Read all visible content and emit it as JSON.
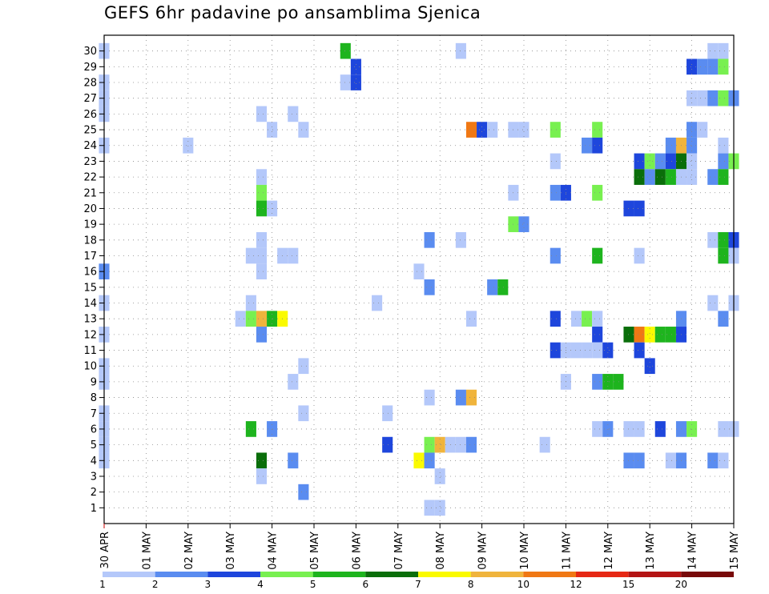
{
  "chart_data": {
    "type": "heatmap",
    "title": "GEFS 6hr padavine po ansamblima Sjenica",
    "x_tick_labels": [
      "30 APR",
      "01 MAY",
      "02 MAY",
      "03 MAY",
      "04 MAY",
      "05 MAY",
      "06 MAY",
      "07 MAY",
      "08 MAY",
      "09 MAY",
      "10 MAY",
      "11 MAY",
      "12 MAY",
      "13 MAY",
      "14 MAY",
      "15 MAY"
    ],
    "x_unit": "6-hour step (4 steps per day), first column = 30 APR 00z",
    "y_tick_labels": [
      "1",
      "2",
      "3",
      "4",
      "5",
      "6",
      "7",
      "8",
      "9",
      "10",
      "11",
      "12",
      "13",
      "14",
      "15",
      "16",
      "17",
      "18",
      "19",
      "20",
      "21",
      "22",
      "23",
      "24",
      "25",
      "26",
      "27",
      "28",
      "29",
      "30"
    ],
    "ylabel": "",
    "xlabel": "",
    "grid": true,
    "colorbar": {
      "levels": [
        "1",
        "2",
        "3",
        "4",
        "5",
        "6",
        "7",
        "8",
        "10",
        "12",
        "15",
        "20"
      ],
      "colors": [
        "#b4c8fa",
        "#5a8cf0",
        "#1e46dc",
        "#78f050",
        "#1eb41e",
        "#0a6e0a",
        "#fafa00",
        "#f0b43c",
        "#f07814",
        "#e62814",
        "#b41414",
        "#780a0a"
      ]
    },
    "cells": [
      {
        "member": 30,
        "step": 0,
        "level": 1
      },
      {
        "member": 30,
        "step": 23,
        "level": 5
      },
      {
        "member": 30,
        "step": 34,
        "level": 1
      },
      {
        "member": 30,
        "step": 58,
        "level": 1
      },
      {
        "member": 30,
        "step": 59,
        "level": 1
      },
      {
        "member": 29,
        "step": 24,
        "level": 3
      },
      {
        "member": 29,
        "step": 56,
        "level": 3
      },
      {
        "member": 29,
        "step": 57,
        "level": 2
      },
      {
        "member": 29,
        "step": 58,
        "level": 2
      },
      {
        "member": 29,
        "step": 59,
        "level": 4
      },
      {
        "member": 28,
        "step": 0,
        "level": 1
      },
      {
        "member": 28,
        "step": 23,
        "level": 1
      },
      {
        "member": 28,
        "step": 24,
        "level": 3
      },
      {
        "member": 27,
        "step": 0,
        "level": 1
      },
      {
        "member": 27,
        "step": 56,
        "level": 1
      },
      {
        "member": 27,
        "step": 57,
        "level": 1
      },
      {
        "member": 27,
        "step": 58,
        "level": 2
      },
      {
        "member": 27,
        "step": 59,
        "level": 4
      },
      {
        "member": 27,
        "step": 60,
        "level": 2
      },
      {
        "member": 26,
        "step": 0,
        "level": 1
      },
      {
        "member": 26,
        "step": 15,
        "level": 1
      },
      {
        "member": 26,
        "step": 18,
        "level": 1
      },
      {
        "member": 25,
        "step": 16,
        "level": 1
      },
      {
        "member": 25,
        "step": 19,
        "level": 1
      },
      {
        "member": 25,
        "step": 35,
        "level": 9
      },
      {
        "member": 25,
        "step": 36,
        "level": 3
      },
      {
        "member": 25,
        "step": 37,
        "level": 1
      },
      {
        "member": 25,
        "step": 39,
        "level": 1
      },
      {
        "member": 25,
        "step": 40,
        "level": 1
      },
      {
        "member": 25,
        "step": 43,
        "level": 4
      },
      {
        "member": 25,
        "step": 47,
        "level": 4
      },
      {
        "member": 25,
        "step": 56,
        "level": 2
      },
      {
        "member": 25,
        "step": 57,
        "level": 1
      },
      {
        "member": 24,
        "step": 0,
        "level": 1
      },
      {
        "member": 24,
        "step": 8,
        "level": 1
      },
      {
        "member": 24,
        "step": 46,
        "level": 2
      },
      {
        "member": 24,
        "step": 47,
        "level": 3
      },
      {
        "member": 24,
        "step": 54,
        "level": 2
      },
      {
        "member": 24,
        "step": 55,
        "level": 8
      },
      {
        "member": 24,
        "step": 56,
        "level": 2
      },
      {
        "member": 24,
        "step": 59,
        "level": 1
      },
      {
        "member": 23,
        "step": 43,
        "level": 1
      },
      {
        "member": 23,
        "step": 51,
        "level": 3
      },
      {
        "member": 23,
        "step": 52,
        "level": 4
      },
      {
        "member": 23,
        "step": 53,
        "level": 2
      },
      {
        "member": 23,
        "step": 54,
        "level": 3
      },
      {
        "member": 23,
        "step": 55,
        "level": 6
      },
      {
        "member": 23,
        "step": 56,
        "level": 1
      },
      {
        "member": 23,
        "step": 59,
        "level": 2
      },
      {
        "member": 23,
        "step": 60,
        "level": 4
      },
      {
        "member": 22,
        "step": 15,
        "level": 1
      },
      {
        "member": 22,
        "step": 51,
        "level": 6
      },
      {
        "member": 22,
        "step": 52,
        "level": 2
      },
      {
        "member": 22,
        "step": 53,
        "level": 6
      },
      {
        "member": 22,
        "step": 54,
        "level": 5
      },
      {
        "member": 22,
        "step": 55,
        "level": 1
      },
      {
        "member": 22,
        "step": 56,
        "level": 1
      },
      {
        "member": 22,
        "step": 58,
        "level": 2
      },
      {
        "member": 22,
        "step": 59,
        "level": 5
      },
      {
        "member": 21,
        "step": 15,
        "level": 4
      },
      {
        "member": 21,
        "step": 39,
        "level": 1
      },
      {
        "member": 21,
        "step": 43,
        "level": 2
      },
      {
        "member": 21,
        "step": 44,
        "level": 3
      },
      {
        "member": 21,
        "step": 47,
        "level": 4
      },
      {
        "member": 20,
        "step": 15,
        "level": 5
      },
      {
        "member": 20,
        "step": 16,
        "level": 1
      },
      {
        "member": 20,
        "step": 50,
        "level": 3
      },
      {
        "member": 20,
        "step": 51,
        "level": 3
      },
      {
        "member": 19,
        "step": 39,
        "level": 4
      },
      {
        "member": 19,
        "step": 40,
        "level": 2
      },
      {
        "member": 18,
        "step": 15,
        "level": 1
      },
      {
        "member": 18,
        "step": 31,
        "level": 2
      },
      {
        "member": 18,
        "step": 34,
        "level": 1
      },
      {
        "member": 18,
        "step": 58,
        "level": 1
      },
      {
        "member": 18,
        "step": 59,
        "level": 5
      },
      {
        "member": 18,
        "step": 60,
        "level": 3
      },
      {
        "member": 17,
        "step": 14,
        "level": 1
      },
      {
        "member": 17,
        "step": 15,
        "level": 1
      },
      {
        "member": 17,
        "step": 17,
        "level": 1
      },
      {
        "member": 17,
        "step": 18,
        "level": 1
      },
      {
        "member": 17,
        "step": 43,
        "level": 2
      },
      {
        "member": 17,
        "step": 47,
        "level": 5
      },
      {
        "member": 17,
        "step": 51,
        "level": 1
      },
      {
        "member": 17,
        "step": 59,
        "level": 5
      },
      {
        "member": 17,
        "step": 60,
        "level": 1
      },
      {
        "member": 16,
        "step": 0,
        "level": 2
      },
      {
        "member": 16,
        "step": 15,
        "level": 1
      },
      {
        "member": 16,
        "step": 30,
        "level": 1
      },
      {
        "member": 15,
        "step": 31,
        "level": 2
      },
      {
        "member": 15,
        "step": 37,
        "level": 2
      },
      {
        "member": 15,
        "step": 38,
        "level": 5
      },
      {
        "member": 14,
        "step": 0,
        "level": 1
      },
      {
        "member": 14,
        "step": 14,
        "level": 1
      },
      {
        "member": 14,
        "step": 26,
        "level": 1
      },
      {
        "member": 14,
        "step": 58,
        "level": 1
      },
      {
        "member": 14,
        "step": 60,
        "level": 1
      },
      {
        "member": 13,
        "step": 13,
        "level": 1
      },
      {
        "member": 13,
        "step": 14,
        "level": 4
      },
      {
        "member": 13,
        "step": 15,
        "level": 8
      },
      {
        "member": 13,
        "step": 16,
        "level": 5
      },
      {
        "member": 13,
        "step": 17,
        "level": 7
      },
      {
        "member": 13,
        "step": 35,
        "level": 1
      },
      {
        "member": 13,
        "step": 43,
        "level": 3
      },
      {
        "member": 13,
        "step": 45,
        "level": 1
      },
      {
        "member": 13,
        "step": 46,
        "level": 4
      },
      {
        "member": 13,
        "step": 47,
        "level": 1
      },
      {
        "member": 13,
        "step": 55,
        "level": 2
      },
      {
        "member": 13,
        "step": 59,
        "level": 2
      },
      {
        "member": 12,
        "step": 0,
        "level": 1
      },
      {
        "member": 12,
        "step": 15,
        "level": 2
      },
      {
        "member": 12,
        "step": 47,
        "level": 3
      },
      {
        "member": 12,
        "step": 50,
        "level": 6
      },
      {
        "member": 12,
        "step": 51,
        "level": 9
      },
      {
        "member": 12,
        "step": 52,
        "level": 7
      },
      {
        "member": 12,
        "step": 53,
        "level": 5
      },
      {
        "member": 12,
        "step": 54,
        "level": 5
      },
      {
        "member": 12,
        "step": 55,
        "level": 3
      },
      {
        "member": 11,
        "step": 43,
        "level": 3
      },
      {
        "member": 11,
        "step": 44,
        "level": 1
      },
      {
        "member": 11,
        "step": 45,
        "level": 1
      },
      {
        "member": 11,
        "step": 46,
        "level": 1
      },
      {
        "member": 11,
        "step": 47,
        "level": 1
      },
      {
        "member": 11,
        "step": 48,
        "level": 3
      },
      {
        "member": 11,
        "step": 51,
        "level": 3
      },
      {
        "member": 10,
        "step": 0,
        "level": 1
      },
      {
        "member": 10,
        "step": 19,
        "level": 1
      },
      {
        "member": 10,
        "step": 52,
        "level": 3
      },
      {
        "member": 9,
        "step": 0,
        "level": 1
      },
      {
        "member": 9,
        "step": 18,
        "level": 1
      },
      {
        "member": 9,
        "step": 44,
        "level": 1
      },
      {
        "member": 9,
        "step": 47,
        "level": 2
      },
      {
        "member": 9,
        "step": 48,
        "level": 5
      },
      {
        "member": 9,
        "step": 49,
        "level": 5
      },
      {
        "member": 8,
        "step": 31,
        "level": 1
      },
      {
        "member": 8,
        "step": 34,
        "level": 2
      },
      {
        "member": 8,
        "step": 35,
        "level": 8
      },
      {
        "member": 7,
        "step": 0,
        "level": 1
      },
      {
        "member": 7,
        "step": 19,
        "level": 1
      },
      {
        "member": 7,
        "step": 27,
        "level": 1
      },
      {
        "member": 6,
        "step": 0,
        "level": 1
      },
      {
        "member": 6,
        "step": 14,
        "level": 5
      },
      {
        "member": 6,
        "step": 16,
        "level": 2
      },
      {
        "member": 6,
        "step": 47,
        "level": 1
      },
      {
        "member": 6,
        "step": 48,
        "level": 2
      },
      {
        "member": 6,
        "step": 50,
        "level": 1
      },
      {
        "member": 6,
        "step": 51,
        "level": 1
      },
      {
        "member": 6,
        "step": 53,
        "level": 3
      },
      {
        "member": 6,
        "step": 55,
        "level": 2
      },
      {
        "member": 6,
        "step": 56,
        "level": 4
      },
      {
        "member": 6,
        "step": 59,
        "level": 1
      },
      {
        "member": 6,
        "step": 60,
        "level": 1
      },
      {
        "member": 5,
        "step": 0,
        "level": 1
      },
      {
        "member": 5,
        "step": 27,
        "level": 3
      },
      {
        "member": 5,
        "step": 31,
        "level": 4
      },
      {
        "member": 5,
        "step": 32,
        "level": 8
      },
      {
        "member": 5,
        "step": 33,
        "level": 1
      },
      {
        "member": 5,
        "step": 34,
        "level": 1
      },
      {
        "member": 5,
        "step": 35,
        "level": 2
      },
      {
        "member": 5,
        "step": 42,
        "level": 1
      },
      {
        "member": 4,
        "step": 0,
        "level": 1
      },
      {
        "member": 4,
        "step": 15,
        "level": 6
      },
      {
        "member": 4,
        "step": 18,
        "level": 2
      },
      {
        "member": 4,
        "step": 30,
        "level": 7
      },
      {
        "member": 4,
        "step": 31,
        "level": 2
      },
      {
        "member": 4,
        "step": 50,
        "level": 2
      },
      {
        "member": 4,
        "step": 51,
        "level": 2
      },
      {
        "member": 4,
        "step": 54,
        "level": 1
      },
      {
        "member": 4,
        "step": 55,
        "level": 2
      },
      {
        "member": 4,
        "step": 58,
        "level": 2
      },
      {
        "member": 4,
        "step": 59,
        "level": 1
      },
      {
        "member": 3,
        "step": 15,
        "level": 1
      },
      {
        "member": 3,
        "step": 32,
        "level": 1
      },
      {
        "member": 2,
        "step": 19,
        "level": 2
      },
      {
        "member": 1,
        "step": 31,
        "level": 1
      },
      {
        "member": 1,
        "step": 32,
        "level": 1
      }
    ]
  }
}
